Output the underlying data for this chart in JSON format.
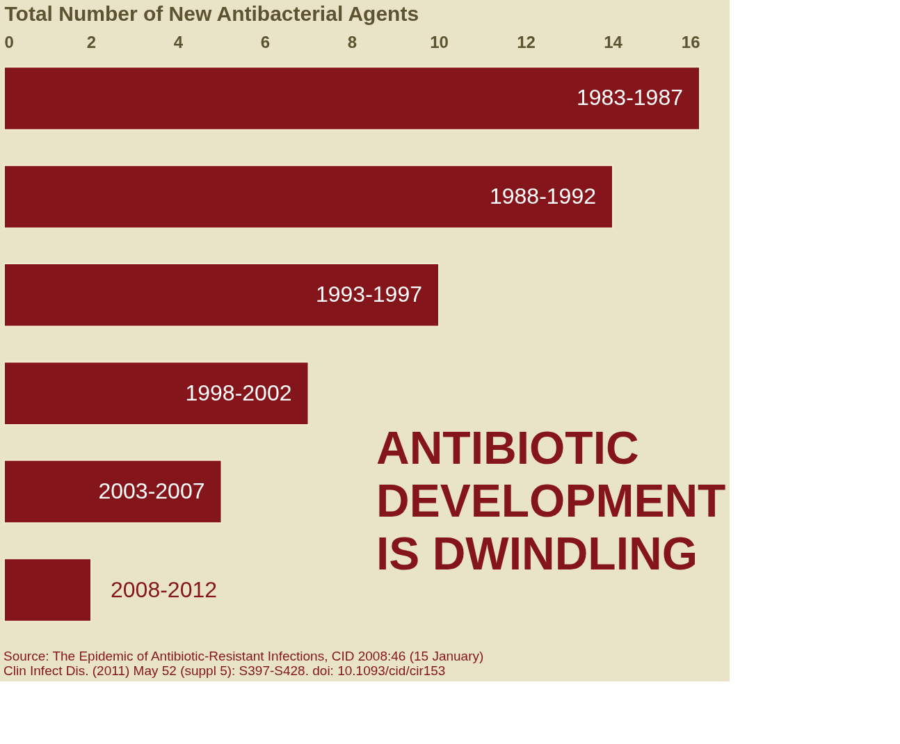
{
  "chart_data": {
    "type": "bar",
    "orientation": "horizontal",
    "xlabel": "Total Number of New Antibacterial Agents",
    "categories": [
      "1983-1987",
      "1988-1992",
      "1993-1997",
      "1998-2002",
      "2003-2007",
      "2008-2012"
    ],
    "values": [
      16,
      14,
      10,
      7,
      5,
      2
    ],
    "color": "#84151a",
    "xlim": [
      0,
      16
    ],
    "xticks": [
      0,
      2,
      4,
      6,
      8,
      10,
      12,
      14,
      16
    ],
    "grid": false,
    "annotations": [
      "ANTIBIOTIC DEVELOPMENT IS DWINDLING",
      "Source: The Epidemic of Antibiotic-Resistant Infections, CID 2008:46 (15 January)",
      "Clin Infect Dis. (2011) May 52 (suppl 5): S397-S428. doi: 10.1093/cid/cir153"
    ]
  }
}
